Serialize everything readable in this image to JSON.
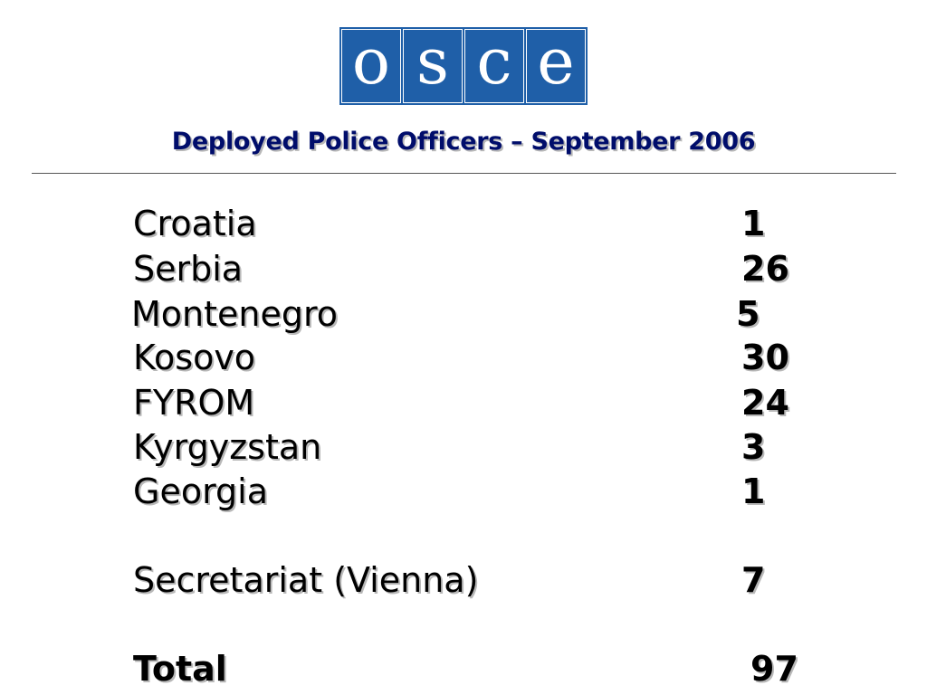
{
  "logo": {
    "letters": [
      "o",
      "s",
      "c",
      "e"
    ]
  },
  "title": "Deployed Police Officers – September 2006",
  "rows": [
    {
      "label": "Croatia",
      "value": "1"
    },
    {
      "label": "Serbia",
      "value": "26"
    },
    {
      "label": "Montenegro",
      "value": "5"
    },
    {
      "label": "Kosovo",
      "value": "30"
    },
    {
      "label": "FYROM",
      "value": "24"
    },
    {
      "label": "Kyrgyzstan",
      "value": "3"
    },
    {
      "label": "Georgia",
      "value": "1"
    },
    {
      "label": "Secretariat (Vienna)",
      "value": "7"
    }
  ],
  "total": {
    "label": "Total",
    "value": "97"
  },
  "colors": {
    "logo_blue": "#1f5fa8",
    "title": "#000d6b",
    "text": "#000000",
    "shadow": "#b8b8b8"
  }
}
